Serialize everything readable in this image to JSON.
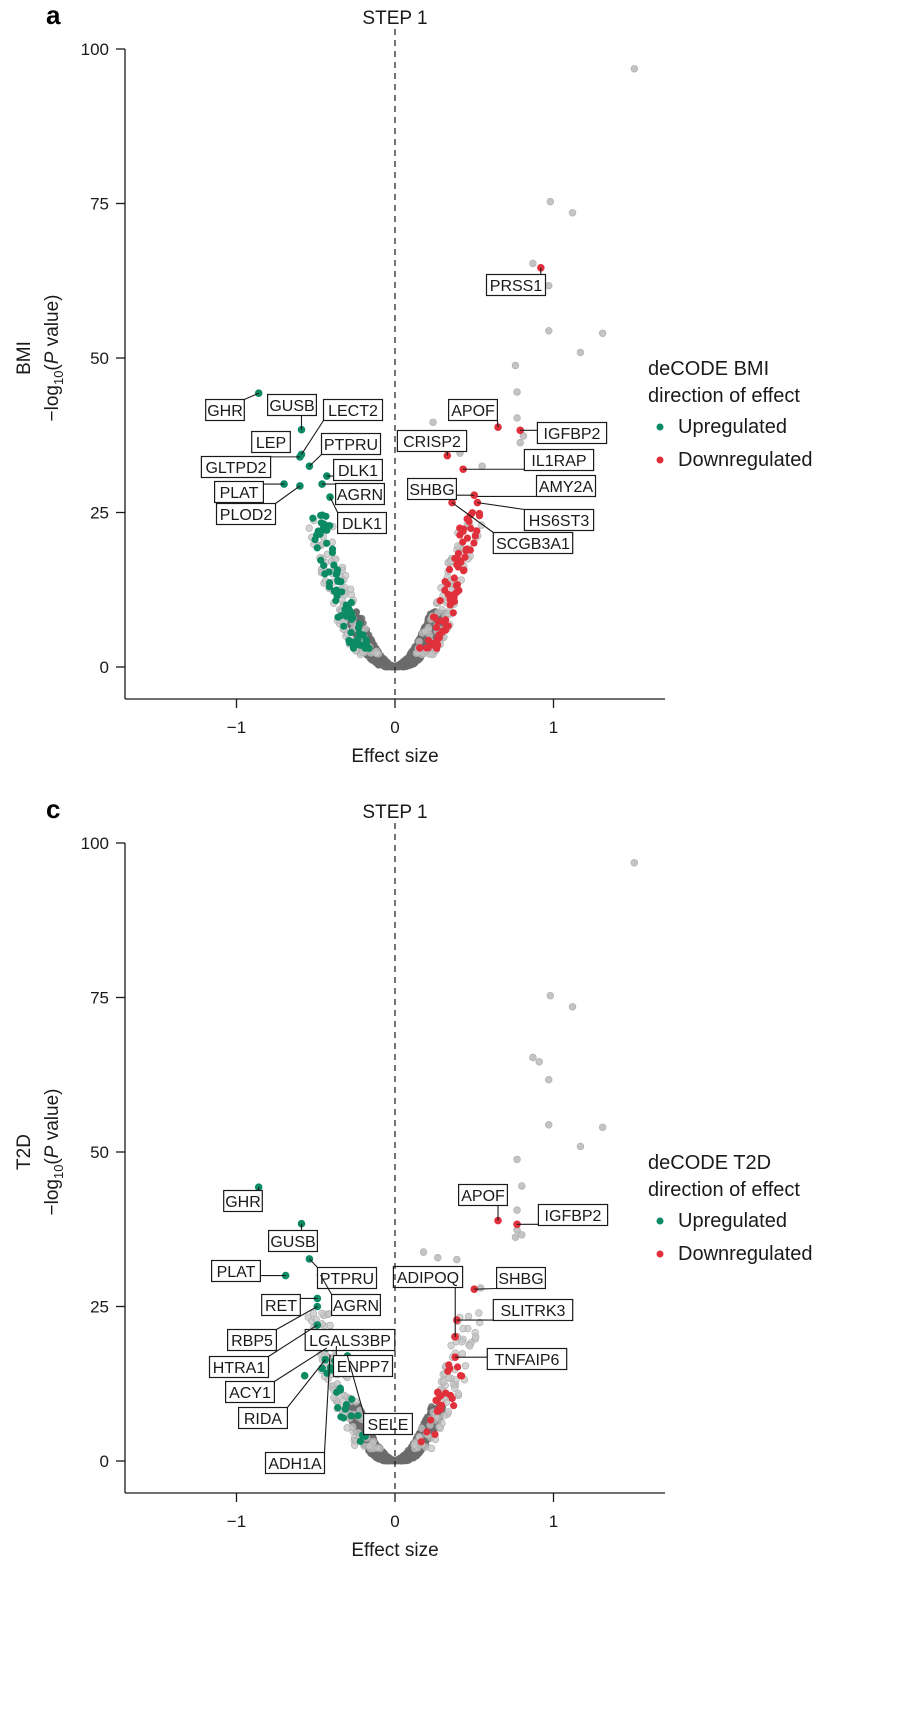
{
  "colors": {
    "up": "#0b8a63",
    "down": "#e0303c",
    "ns_light": "#c4c4c4",
    "ns_dark": "#6b6b6b"
  },
  "chart_data": [
    {
      "type": "scatter",
      "panel": "a",
      "title": "STEP 1",
      "xlabel": "Effect size",
      "ylabel_prefix": "BMI",
      "ylabel": "−log10(P value)",
      "xlim": [
        -1.7,
        1.7
      ],
      "ylim": [
        -3,
        100
      ],
      "xticks": [
        -1,
        0,
        1
      ],
      "xtick_labels": [
        "−1",
        "0",
        "1"
      ],
      "yticks": [
        0,
        25,
        50,
        75,
        100
      ],
      "ytick_labels": [
        "0",
        "25",
        "50",
        "75",
        "100"
      ],
      "zero_line": true,
      "legend": {
        "title_lines": [
          "deCODE BMI",
          "direction of effect"
        ],
        "entries": [
          {
            "label": "Upregulated",
            "category": "up"
          },
          {
            "label": "Downregulated",
            "category": "down"
          }
        ],
        "placement": "right"
      },
      "highlighted_points": [
        {
          "x": -0.86,
          "y": 44.3,
          "category": "up"
        },
        {
          "x": -0.59,
          "y": 38.4,
          "category": "up"
        },
        {
          "x": -0.69,
          "y": 36.1,
          "category": "up"
        },
        {
          "x": -0.6,
          "y": 34.0,
          "category": "up"
        },
        {
          "x": -0.59,
          "y": 34.4,
          "category": "up"
        },
        {
          "x": -0.54,
          "y": 32.5,
          "category": "up"
        },
        {
          "x": -0.43,
          "y": 30.9,
          "category": "up"
        },
        {
          "x": -0.46,
          "y": 29.6,
          "category": "up"
        },
        {
          "x": -0.7,
          "y": 29.6,
          "category": "up"
        },
        {
          "x": -0.6,
          "y": 29.3,
          "category": "up"
        },
        {
          "x": -0.41,
          "y": 27.5,
          "category": "up"
        },
        {
          "x": 0.65,
          "y": 38.8,
          "category": "down"
        },
        {
          "x": 0.79,
          "y": 38.3,
          "category": "down"
        },
        {
          "x": 0.33,
          "y": 34.2,
          "category": "down"
        },
        {
          "x": 0.43,
          "y": 32.0,
          "category": "down"
        },
        {
          "x": 0.36,
          "y": 26.6,
          "category": "down"
        },
        {
          "x": 0.5,
          "y": 27.8,
          "category": "down"
        },
        {
          "x": 0.52,
          "y": 26.6,
          "category": "down"
        },
        {
          "x": 0.92,
          "y": 64.6,
          "category": "down"
        }
      ],
      "labels": [
        {
          "text": "GHR",
          "point": [
            -0.86,
            44.3
          ]
        },
        {
          "text": "GUSB",
          "point": [
            -0.59,
            38.4
          ]
        },
        {
          "text": "LECT2",
          "point": [
            -0.59,
            34.4
          ]
        },
        {
          "text": "LEP",
          "point": [
            -0.69,
            36.1
          ]
        },
        {
          "text": "PTPRU",
          "point": [
            -0.54,
            32.5
          ]
        },
        {
          "text": "GLTPD2",
          "point": [
            -0.6,
            34.0
          ]
        },
        {
          "text": "DLK1",
          "point": [
            -0.43,
            30.9
          ]
        },
        {
          "text": "PLAT",
          "point": [
            -0.7,
            29.6
          ]
        },
        {
          "text": "AGRN",
          "point": [
            -0.46,
            29.6
          ]
        },
        {
          "text": "PLOD2",
          "point": [
            -0.6,
            29.3
          ]
        },
        {
          "text": "DLK1",
          "point": [
            -0.41,
            27.5
          ]
        },
        {
          "text": "PRSS1",
          "point": [
            0.92,
            64.6
          ]
        },
        {
          "text": "APOF",
          "point": [
            0.65,
            38.8
          ]
        },
        {
          "text": "IGFBP2",
          "point": [
            0.79,
            38.3
          ]
        },
        {
          "text": "CRISP2",
          "point": [
            0.33,
            34.2
          ]
        },
        {
          "text": "IL1RAP",
          "point": [
            0.43,
            32.0
          ]
        },
        {
          "text": "SHBG",
          "point": [
            0.5,
            27.8
          ]
        },
        {
          "text": "AMY2A",
          "point": [
            0.52,
            27.6
          ]
        },
        {
          "text": "HS6ST3",
          "point": [
            0.52,
            26.6
          ]
        },
        {
          "text": "SCGB3A1",
          "point": [
            0.36,
            26.6
          ]
        }
      ],
      "outlier_points": [
        {
          "x": 1.51,
          "y": 96.8
        },
        {
          "x": 0.98,
          "y": 75.3
        },
        {
          "x": 1.12,
          "y": 73.5
        },
        {
          "x": 0.87,
          "y": 65.3
        },
        {
          "x": 0.97,
          "y": 61.7
        },
        {
          "x": 0.97,
          "y": 54.4
        },
        {
          "x": 1.31,
          "y": 54.0
        },
        {
          "x": 1.17,
          "y": 50.9
        },
        {
          "x": 0.76,
          "y": 48.8
        },
        {
          "x": 0.77,
          "y": 44.5
        },
        {
          "x": 0.77,
          "y": 40.3
        },
        {
          "x": 0.81,
          "y": 37.4
        },
        {
          "x": 0.79,
          "y": 36.3
        },
        {
          "x": 0.24,
          "y": 39.6
        },
        {
          "x": 0.41,
          "y": 34.6
        },
        {
          "x": 0.55,
          "y": 32.5
        }
      ]
    },
    {
      "type": "scatter",
      "panel": "c",
      "title": "STEP 1",
      "xlabel": "Effect size",
      "ylabel_prefix": "T2D",
      "ylabel": "−log10(P value)",
      "xlim": [
        -1.7,
        1.7
      ],
      "ylim": [
        -3,
        100
      ],
      "xticks": [
        -1,
        0,
        1
      ],
      "xtick_labels": [
        "−1",
        "0",
        "1"
      ],
      "yticks": [
        0,
        25,
        50,
        75,
        100
      ],
      "ytick_labels": [
        "0",
        "25",
        "50",
        "75",
        "100"
      ],
      "zero_line": true,
      "legend": {
        "title_lines": [
          "deCODE T2D",
          "direction of effect"
        ],
        "entries": [
          {
            "label": "Upregulated",
            "category": "up"
          },
          {
            "label": "Downregulated",
            "category": "down"
          }
        ],
        "placement": "right"
      },
      "highlighted_points": [
        {
          "x": -0.86,
          "y": 44.3,
          "category": "up"
        },
        {
          "x": -0.59,
          "y": 38.4,
          "category": "up"
        },
        {
          "x": -0.54,
          "y": 32.7,
          "category": "up"
        },
        {
          "x": -0.69,
          "y": 30.0,
          "category": "up"
        },
        {
          "x": -0.47,
          "y": 30.1,
          "category": "up"
        },
        {
          "x": -0.49,
          "y": 26.3,
          "category": "up"
        },
        {
          "x": -0.49,
          "y": 25.0,
          "category": "up"
        },
        {
          "x": -0.49,
          "y": 22.0,
          "category": "up"
        },
        {
          "x": -0.4,
          "y": 20.0,
          "category": "up"
        },
        {
          "x": -0.37,
          "y": 18.6,
          "category": "up"
        },
        {
          "x": -0.43,
          "y": 18.3,
          "category": "up"
        },
        {
          "x": -0.44,
          "y": 16.4,
          "category": "up"
        },
        {
          "x": -0.3,
          "y": 17.0,
          "category": "up"
        },
        {
          "x": -0.46,
          "y": 15.0,
          "category": "up"
        },
        {
          "x": -0.57,
          "y": 13.8,
          "category": "up"
        },
        {
          "x": 0.65,
          "y": 38.9,
          "category": "down"
        },
        {
          "x": 0.77,
          "y": 38.3,
          "category": "down"
        },
        {
          "x": 0.5,
          "y": 27.8,
          "category": "down"
        },
        {
          "x": 0.39,
          "y": 22.8,
          "category": "down"
        },
        {
          "x": 0.38,
          "y": 20.1,
          "category": "down"
        },
        {
          "x": 0.38,
          "y": 16.8,
          "category": "down"
        },
        {
          "x": 0.27,
          "y": 11.1,
          "category": "down"
        },
        {
          "x": 0.26,
          "y": 9.8,
          "category": "down"
        },
        {
          "x": 0.28,
          "y": 8.5,
          "category": "down"
        }
      ],
      "labels": [
        {
          "text": "GHR",
          "point": [
            -0.86,
            44.3
          ]
        },
        {
          "text": "GUSB",
          "point": [
            -0.59,
            38.4
          ]
        },
        {
          "text": "PTPRU",
          "point": [
            -0.54,
            32.7
          ]
        },
        {
          "text": "PLAT",
          "point": [
            -0.69,
            30.0
          ]
        },
        {
          "text": "AGRN",
          "point": [
            -0.47,
            30.1
          ]
        },
        {
          "text": "RET",
          "point": [
            -0.49,
            26.3
          ]
        },
        {
          "text": "RBP5",
          "point": [
            -0.49,
            25.0
          ]
        },
        {
          "text": "LGALS3BP",
          "point": [
            -0.4,
            20.0
          ]
        },
        {
          "text": "HTRA1",
          "point": [
            -0.49,
            22.0
          ]
        },
        {
          "text": "ENPP7",
          "point": [
            -0.37,
            18.6
          ]
        },
        {
          "text": "ACY1",
          "point": [
            -0.43,
            18.3
          ]
        },
        {
          "text": "RIDA",
          "point": [
            -0.44,
            16.4
          ]
        },
        {
          "text": "SELE",
          "point": [
            -0.3,
            17.0
          ]
        },
        {
          "text": "ADH1A",
          "point": [
            -0.41,
            17.2
          ]
        },
        {
          "text": "APOF",
          "point": [
            0.65,
            38.9
          ]
        },
        {
          "text": "IGFBP2",
          "point": [
            0.77,
            38.3
          ]
        },
        {
          "text": "ADIPOQ",
          "point": [
            0.38,
            20.1
          ]
        },
        {
          "text": "SHBG",
          "point": [
            0.5,
            27.8
          ]
        },
        {
          "text": "SLITRK3",
          "point": [
            0.39,
            22.8
          ]
        },
        {
          "text": "TNFAIP6",
          "point": [
            0.38,
            16.8
          ]
        }
      ],
      "outlier_points": [
        {
          "x": 1.51,
          "y": 96.8
        },
        {
          "x": 0.98,
          "y": 75.3
        },
        {
          "x": 1.12,
          "y": 73.5
        },
        {
          "x": 0.87,
          "y": 65.3
        },
        {
          "x": 0.91,
          "y": 64.6
        },
        {
          "x": 0.97,
          "y": 61.7
        },
        {
          "x": 0.97,
          "y": 54.4
        },
        {
          "x": 1.31,
          "y": 54.0
        },
        {
          "x": 1.17,
          "y": 50.9
        },
        {
          "x": 0.77,
          "y": 48.8
        },
        {
          "x": 0.8,
          "y": 44.5
        },
        {
          "x": 0.77,
          "y": 40.6
        },
        {
          "x": 0.77,
          "y": 37.4
        },
        {
          "x": 0.76,
          "y": 36.2
        },
        {
          "x": 0.8,
          "y": 36.6
        },
        {
          "x": 0.54,
          "y": 28.0
        },
        {
          "x": 0.18,
          "y": 33.8
        },
        {
          "x": 0.27,
          "y": 32.9
        },
        {
          "x": 0.39,
          "y": 32.6
        }
      ]
    }
  ]
}
